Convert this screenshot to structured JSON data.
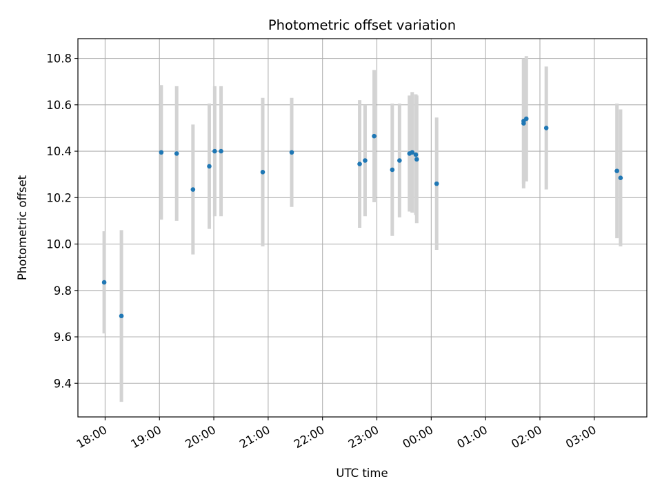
{
  "chart_data": {
    "type": "scatter",
    "title": "Photometric offset variation",
    "xlabel": "UTC time",
    "ylabel": "Photometric offset",
    "x_ticks": [
      "18:00",
      "19:00",
      "20:00",
      "21:00",
      "22:00",
      "23:00",
      "00:00",
      "01:00",
      "02:00",
      "03:00"
    ],
    "y_ticks": [
      "9.4",
      "9.6",
      "9.8",
      "10.0",
      "10.2",
      "10.4",
      "10.6",
      "10.8"
    ],
    "xlim": [
      "17:30",
      "03:58"
    ],
    "ylim": [
      9.255,
      10.885
    ],
    "grid": true,
    "colors": {
      "point": "#1f77b4",
      "errorbar": "#d3d3d3",
      "grid": "#b0b0b0"
    },
    "points": [
      {
        "x": "17:59",
        "y": 9.835,
        "err": 0.22
      },
      {
        "x": "18:18",
        "y": 9.69,
        "err": 0.37
      },
      {
        "x": "19:02",
        "y": 10.395,
        "err": 0.29
      },
      {
        "x": "19:19",
        "y": 10.39,
        "err": 0.29
      },
      {
        "x": "19:37",
        "y": 10.235,
        "err": 0.28
      },
      {
        "x": "19:55",
        "y": 10.335,
        "err": 0.27
      },
      {
        "x": "20:01",
        "y": 10.4,
        "err": 0.28
      },
      {
        "x": "20:08",
        "y": 10.4,
        "err": 0.28
      },
      {
        "x": "20:54",
        "y": 10.31,
        "err": 0.32
      },
      {
        "x": "21:26",
        "y": 10.395,
        "err": 0.235
      },
      {
        "x": "22:41",
        "y": 10.345,
        "err": 0.275
      },
      {
        "x": "22:47",
        "y": 10.36,
        "err": 0.24
      },
      {
        "x": "22:57",
        "y": 10.465,
        "err": 0.285
      },
      {
        "x": "23:17",
        "y": 10.32,
        "err": 0.285
      },
      {
        "x": "23:25",
        "y": 10.36,
        "err": 0.245
      },
      {
        "x": "23:36",
        "y": 10.39,
        "err": 0.25
      },
      {
        "x": "23:39",
        "y": 10.395,
        "err": 0.26
      },
      {
        "x": "23:43",
        "y": 10.385,
        "err": 0.26
      },
      {
        "x": "23:44",
        "y": 10.365,
        "err": 0.275
      },
      {
        "x": "00:06",
        "y": 10.26,
        "err": 0.285
      },
      {
        "x": "01:42",
        "y": 10.52,
        "err": 0.28
      },
      {
        "x": "01:42",
        "y": 10.53,
        "err": 0.27
      },
      {
        "x": "01:45",
        "y": 10.54,
        "err": 0.27
      },
      {
        "x": "02:07",
        "y": 10.5,
        "err": 0.265
      },
      {
        "x": "03:25",
        "y": 10.315,
        "err": 0.29
      },
      {
        "x": "03:29",
        "y": 10.285,
        "err": 0.295
      }
    ]
  }
}
